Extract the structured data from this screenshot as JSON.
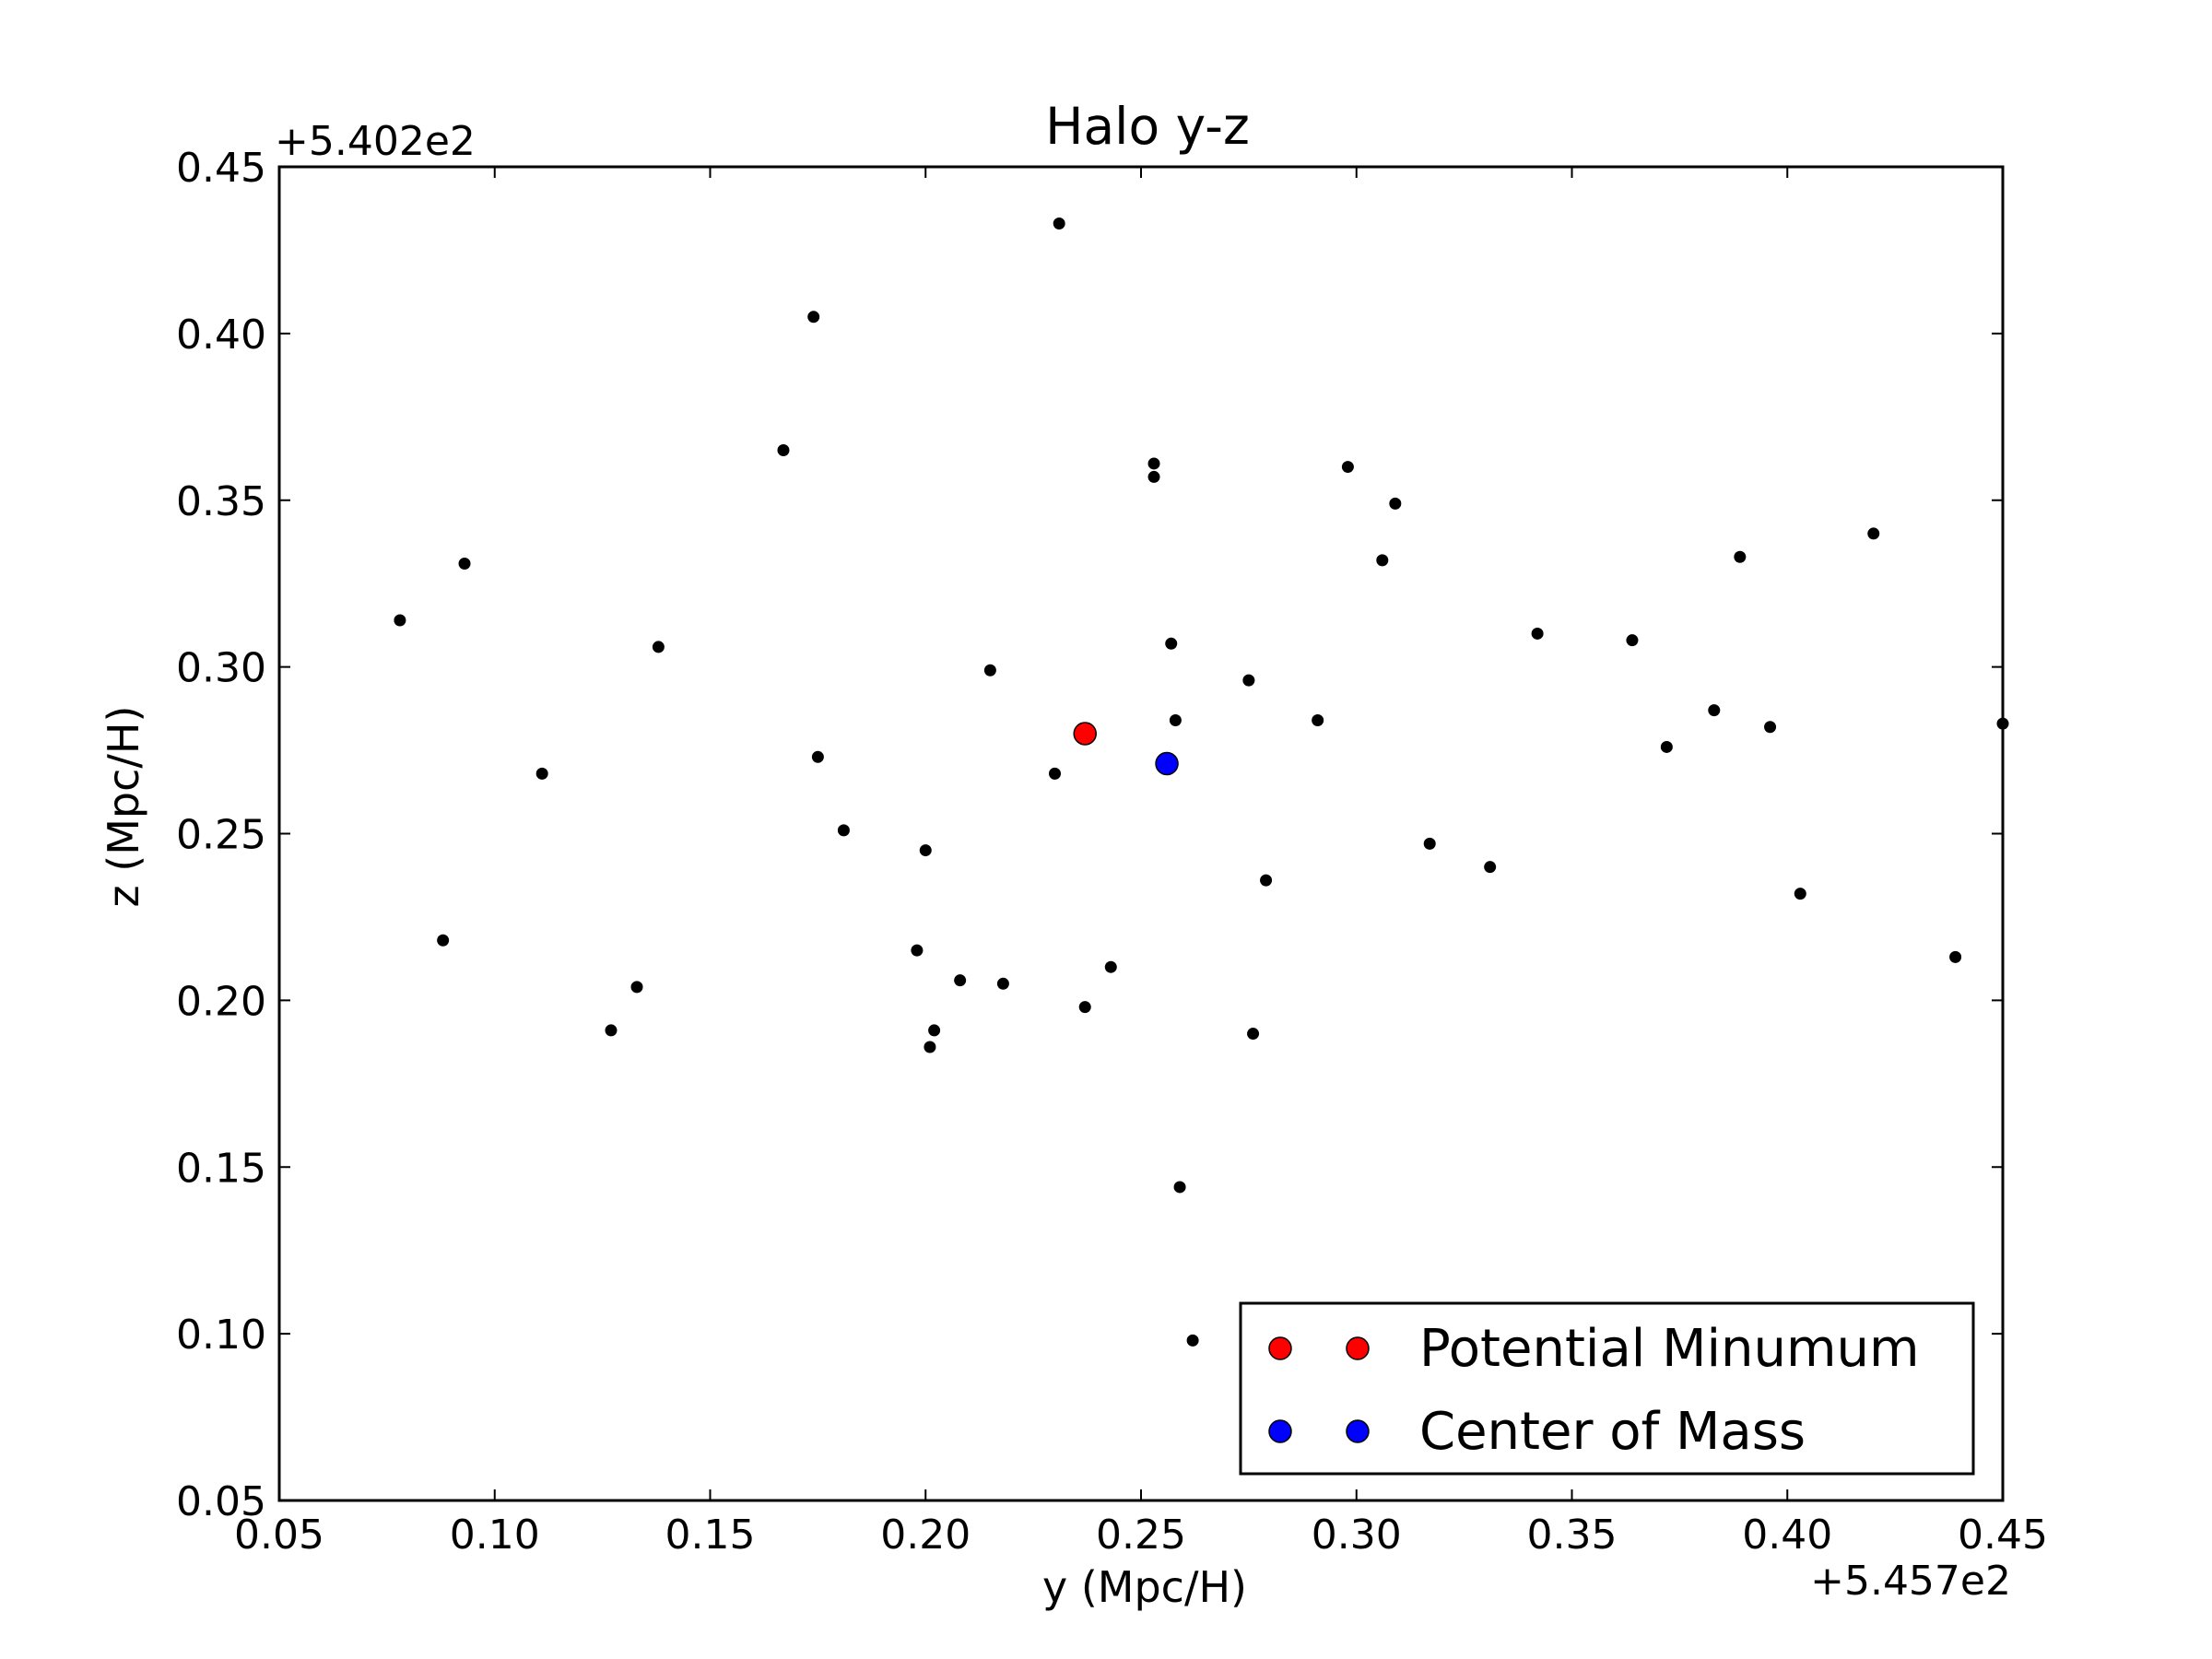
{
  "chart_data": {
    "type": "scatter",
    "title": "Halo y-z",
    "xlabel": "y (Mpc/H)",
    "ylabel": "z (Mpc/H)",
    "x_offset_label": "+5.457e2",
    "y_offset_label": "+5.402e2",
    "xlim": [
      0.05,
      0.45
    ],
    "ylim": [
      0.05,
      0.45
    ],
    "x_ticks": [
      "0.05",
      "0.10",
      "0.15",
      "0.20",
      "0.25",
      "0.30",
      "0.35",
      "0.40",
      "0.45"
    ],
    "y_ticks": [
      "0.05",
      "0.10",
      "0.15",
      "0.20",
      "0.25",
      "0.30",
      "0.35",
      "0.40",
      "0.45"
    ],
    "grid": false,
    "legend_position": "lower right",
    "series": [
      {
        "role": "particles",
        "color": "#000000",
        "points": [
          [
            0.078,
            0.314
          ],
          [
            0.093,
            0.331
          ],
          [
            0.088,
            0.218
          ],
          [
            0.111,
            0.268
          ],
          [
            0.127,
            0.191
          ],
          [
            0.133,
            0.204
          ],
          [
            0.138,
            0.306
          ],
          [
            0.167,
            0.365
          ],
          [
            0.174,
            0.405
          ],
          [
            0.175,
            0.273
          ],
          [
            0.181,
            0.251
          ],
          [
            0.198,
            0.215
          ],
          [
            0.2,
            0.245
          ],
          [
            0.201,
            0.186
          ],
          [
            0.202,
            0.191
          ],
          [
            0.208,
            0.206
          ],
          [
            0.215,
            0.299
          ],
          [
            0.218,
            0.205
          ],
          [
            0.23,
            0.268
          ],
          [
            0.231,
            0.433
          ],
          [
            0.237,
            0.198
          ],
          [
            0.243,
            0.21
          ],
          [
            0.253,
            0.361
          ],
          [
            0.253,
            0.357
          ],
          [
            0.257,
            0.307
          ],
          [
            0.258,
            0.284
          ],
          [
            0.259,
            0.144
          ],
          [
            0.262,
            0.098
          ],
          [
            0.275,
            0.296
          ],
          [
            0.276,
            0.19
          ],
          [
            0.279,
            0.236
          ],
          [
            0.291,
            0.284
          ],
          [
            0.298,
            0.36
          ],
          [
            0.306,
            0.332
          ],
          [
            0.309,
            0.349
          ],
          [
            0.317,
            0.247
          ],
          [
            0.331,
            0.24
          ],
          [
            0.342,
            0.31
          ],
          [
            0.364,
            0.308
          ],
          [
            0.372,
            0.276
          ],
          [
            0.383,
            0.287
          ],
          [
            0.389,
            0.333
          ],
          [
            0.396,
            0.282
          ],
          [
            0.403,
            0.232
          ],
          [
            0.42,
            0.34
          ],
          [
            0.439,
            0.213
          ],
          [
            0.45,
            0.283
          ]
        ]
      },
      {
        "name": "Potential Minumum",
        "color": "#ff0000",
        "points": [
          [
            0.237,
            0.28
          ]
        ]
      },
      {
        "name": "Center of Mass",
        "color": "#0000ff",
        "points": [
          [
            0.256,
            0.271
          ]
        ]
      }
    ]
  }
}
